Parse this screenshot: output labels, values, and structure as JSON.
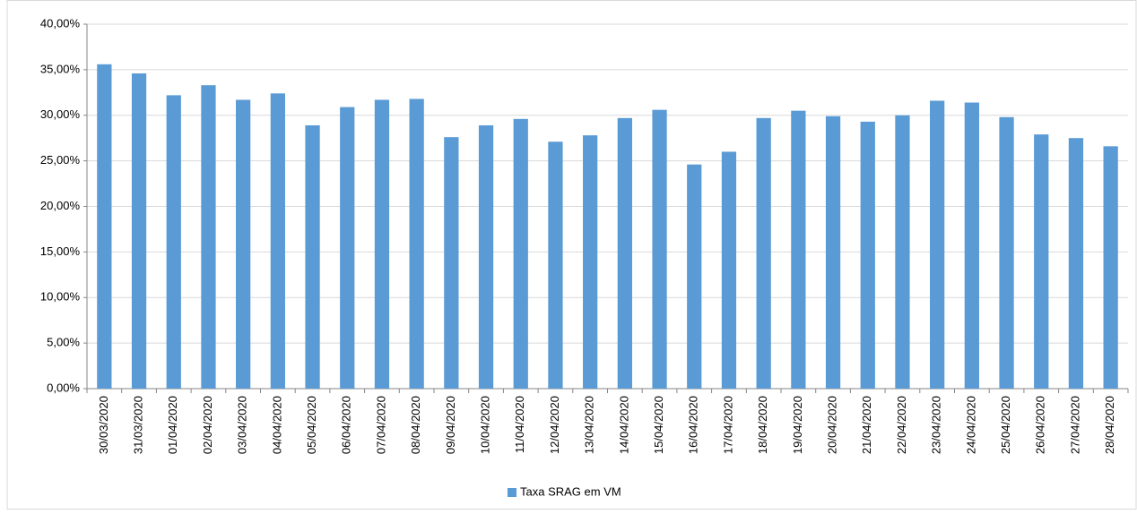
{
  "chart_data": {
    "type": "bar",
    "categories": [
      "30/03/2020",
      "31/03/2020",
      "01/04/2020",
      "02/04/2020",
      "03/04/2020",
      "04/04/2020",
      "05/04/2020",
      "06/04/2020",
      "07/04/2020",
      "08/04/2020",
      "09/04/2020",
      "10/04/2020",
      "11/04/2020",
      "12/04/2020",
      "13/04/2020",
      "14/04/2020",
      "15/04/2020",
      "16/04/2020",
      "17/04/2020",
      "18/04/2020",
      "19/04/2020",
      "20/04/2020",
      "21/04/2020",
      "22/04/2020",
      "23/04/2020",
      "24/04/2020",
      "25/04/2020",
      "26/04/2020",
      "27/04/2020",
      "28/04/2020"
    ],
    "series": [
      {
        "name": "Taxa SRAG em VM",
        "color": "#5b9bd5",
        "values": [
          35.6,
          34.6,
          32.2,
          33.3,
          31.7,
          32.4,
          28.9,
          30.9,
          31.7,
          31.8,
          27.6,
          28.9,
          29.6,
          27.1,
          27.8,
          29.7,
          30.6,
          24.6,
          26.0,
          29.7,
          30.5,
          29.9,
          29.3,
          30.0,
          31.6,
          31.4,
          29.8,
          27.9,
          27.5,
          26.6
        ]
      }
    ],
    "ylim": [
      0,
      40
    ],
    "yticks": [
      {
        "value": 0,
        "label": "0,00%"
      },
      {
        "value": 5,
        "label": "5,00%"
      },
      {
        "value": 10,
        "label": "10,00%"
      },
      {
        "value": 15,
        "label": "15,00%"
      },
      {
        "value": 20,
        "label": "20,00%"
      },
      {
        "value": 25,
        "label": "25,00%"
      },
      {
        "value": 30,
        "label": "30,00%"
      },
      {
        "value": 35,
        "label": "35,00%"
      },
      {
        "value": 40,
        "label": "40,00%"
      }
    ],
    "grid": true,
    "legend": "bottom"
  }
}
